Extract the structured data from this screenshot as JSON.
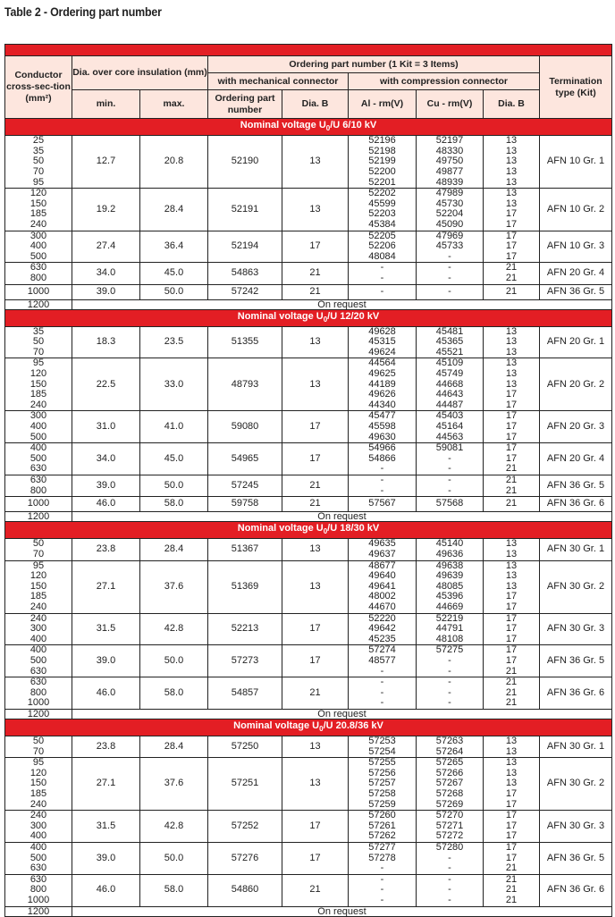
{
  "title": "Table 2 - Ordering part number",
  "colors": {
    "accent_red": "#e31e24",
    "header_bg": "#fde6de"
  },
  "header": {
    "conductor": "Conductor cross-sec-tion (mm²)",
    "dia_core": "Dia. over core insulation (mm)",
    "min": "min.",
    "max": "max.",
    "ordering": "Ordering part number (1 Kit = 3 Items)",
    "mechanical": "with mechanical connector",
    "compression": "with compression connector",
    "ordering_part": "Ordering part number",
    "dia_b": "Dia. B",
    "al": "Al - rm(V)",
    "cu": "Cu - rm(V)",
    "dia_b2": "Dia. B",
    "termination": "Termination type (Kit)"
  },
  "sections": [
    {
      "voltage_prefix": "Nominal voltage U",
      "voltage_sub": "0",
      "voltage_suffix": "/U 6/10 kV",
      "groups": [
        {
          "sizes": [
            "25",
            "35",
            "50",
            "70",
            "95"
          ],
          "min": "12.7",
          "max": "20.8",
          "mech": "52190",
          "mech_dia": "13",
          "al": [
            "52196",
            "52198",
            "52199",
            "52200",
            "52201"
          ],
          "cu": [
            "52197",
            "48330",
            "49750",
            "49877",
            "48939"
          ],
          "dia": [
            "13",
            "13",
            "13",
            "13",
            "13"
          ],
          "term": "AFN 10 Gr. 1"
        },
        {
          "sizes": [
            "120",
            "150",
            "185",
            "240"
          ],
          "min": "19.2",
          "max": "28.4",
          "mech": "52191",
          "mech_dia": "13",
          "al": [
            "52202",
            "45599",
            "52203",
            "45384"
          ],
          "cu": [
            "47989",
            "45730",
            "52204",
            "45090"
          ],
          "dia": [
            "13",
            "13",
            "17",
            "17"
          ],
          "term": "AFN 10 Gr. 2"
        },
        {
          "sizes": [
            "300",
            "400",
            "500"
          ],
          "min": "27.4",
          "max": "36.4",
          "mech": "52194",
          "mech_dia": "17",
          "al": [
            "52205",
            "52206",
            "48084"
          ],
          "cu": [
            "47969",
            "45733",
            "-"
          ],
          "dia": [
            "17",
            "17",
            "17"
          ],
          "term": "AFN 10 Gr. 3"
        },
        {
          "sizes": [
            "630",
            "800"
          ],
          "min": "34.0",
          "max": "45.0",
          "mech": "54863",
          "mech_dia": "21",
          "al": [
            "-",
            "-"
          ],
          "cu": [
            "-",
            "-"
          ],
          "dia": [
            "21",
            "21"
          ],
          "term": "AFN 20 Gr. 4"
        },
        {
          "sizes": [
            "1000"
          ],
          "min": "39.0",
          "max": "50.0",
          "mech": "57242",
          "mech_dia": "21",
          "al": [
            "-"
          ],
          "cu": [
            "-"
          ],
          "dia": [
            "21"
          ],
          "term": "AFN 36 Gr. 5"
        }
      ],
      "request_size": "1200",
      "request_text": "On request"
    },
    {
      "voltage_prefix": "Nominal voltage U",
      "voltage_sub": "0",
      "voltage_suffix": "/U 12/20 kV",
      "groups": [
        {
          "sizes": [
            "35",
            "50",
            "70"
          ],
          "min": "18.3",
          "max": "23.5",
          "mech": "51355",
          "mech_dia": "13",
          "al": [
            "49628",
            "45315",
            "49624"
          ],
          "cu": [
            "45481",
            "45365",
            "45521"
          ],
          "dia": [
            "13",
            "13",
            "13"
          ],
          "term": "AFN 20 Gr. 1"
        },
        {
          "sizes": [
            "95",
            "120",
            "150",
            "185",
            "240"
          ],
          "min": "22.5",
          "max": "33.0",
          "mech": "48793",
          "mech_dia": "13",
          "al": [
            "44564",
            "49625",
            "44189",
            "49626",
            "44340"
          ],
          "cu": [
            "45109",
            "45749",
            "44668",
            "44643",
            "44487"
          ],
          "dia": [
            "13",
            "13",
            "13",
            "17",
            "17"
          ],
          "term": "AFN 20 Gr. 2"
        },
        {
          "sizes": [
            "300",
            "400",
            "500"
          ],
          "min": "31.0",
          "max": "41.0",
          "mech": "59080",
          "mech_dia": "17",
          "al": [
            "45477",
            "45598",
            "49630"
          ],
          "cu": [
            "45403",
            "45164",
            "44563"
          ],
          "dia": [
            "17",
            "17",
            "17"
          ],
          "term": "AFN 20 Gr. 3"
        },
        {
          "sizes": [
            "400",
            "500",
            "630"
          ],
          "min": "34.0",
          "max": "45.0",
          "mech": "54965",
          "mech_dia": "17",
          "al": [
            "54966",
            "54866",
            "-"
          ],
          "cu": [
            "59081",
            "-",
            "-"
          ],
          "dia": [
            "17",
            "17",
            "21"
          ],
          "term": "AFN 20 Gr. 4"
        },
        {
          "sizes": [
            "630",
            "800"
          ],
          "min": "39.0",
          "max": "50.0",
          "mech": "57245",
          "mech_dia": "21",
          "al": [
            "-",
            "-"
          ],
          "cu": [
            "-",
            "-"
          ],
          "dia": [
            "21",
            "21"
          ],
          "term": "AFN 36 Gr. 5"
        },
        {
          "sizes": [
            "1000"
          ],
          "min": "46.0",
          "max": "58.0",
          "mech": "59758",
          "mech_dia": "21",
          "al": [
            "57567"
          ],
          "cu": [
            "57568"
          ],
          "dia": [
            "21"
          ],
          "term": "AFN 36 Gr. 6"
        }
      ],
      "request_size": "1200",
      "request_text": "On request"
    },
    {
      "voltage_prefix": "Nominal voltage U",
      "voltage_sub": "0",
      "voltage_suffix": "/U 18/30 kV",
      "groups": [
        {
          "sizes": [
            "50",
            "70"
          ],
          "min": "23.8",
          "max": "28.4",
          "mech": "51367",
          "mech_dia": "13",
          "al": [
            "49635",
            "49637"
          ],
          "cu": [
            "45140",
            "49636"
          ],
          "dia": [
            "13",
            "13"
          ],
          "term": "AFN 30 Gr. 1"
        },
        {
          "sizes": [
            "95",
            "120",
            "150",
            "185",
            "240"
          ],
          "min": "27.1",
          "max": "37.6",
          "mech": "51369",
          "mech_dia": "13",
          "al": [
            "48677",
            "49640",
            "49641",
            "48002",
            "44670"
          ],
          "cu": [
            "49638",
            "49639",
            "48085",
            "45396",
            "44669"
          ],
          "dia": [
            "13",
            "13",
            "13",
            "17",
            "17"
          ],
          "term": "AFN 30 Gr. 2"
        },
        {
          "sizes": [
            "240",
            "300",
            "400"
          ],
          "min": "31.5",
          "max": "42.8",
          "mech": "52213",
          "mech_dia": "17",
          "al": [
            "52220",
            "49642",
            "45235"
          ],
          "cu": [
            "52219",
            "44791",
            "48108"
          ],
          "dia": [
            "17",
            "17",
            "17"
          ],
          "term": "AFN 30 Gr. 3"
        },
        {
          "sizes": [
            "400",
            "500",
            "630"
          ],
          "min": "39.0",
          "max": "50.0",
          "mech": "57273",
          "mech_dia": "17",
          "al": [
            "57274",
            "48577",
            "-"
          ],
          "cu": [
            "57275",
            "-",
            "-"
          ],
          "dia": [
            "17",
            "17",
            "21"
          ],
          "term": "AFN 36 Gr. 5"
        },
        {
          "sizes": [
            "630",
            "800",
            "1000"
          ],
          "min": "46.0",
          "max": "58.0",
          "mech": "54857",
          "mech_dia": "21",
          "al": [
            "-",
            "-",
            "-"
          ],
          "cu": [
            "-",
            "-",
            "-"
          ],
          "dia": [
            "21",
            "21",
            "21"
          ],
          "term": "AFN 36 Gr. 6"
        }
      ],
      "request_size": "1200",
      "request_text": "On request"
    },
    {
      "voltage_prefix": "Nominal voltage U",
      "voltage_sub": "0",
      "voltage_suffix": "/U 20.8/36 kV",
      "groups": [
        {
          "sizes": [
            "50",
            "70"
          ],
          "min": "23.8",
          "max": "28.4",
          "mech": "57250",
          "mech_dia": "13",
          "al": [
            "57253",
            "57254"
          ],
          "cu": [
            "57263",
            "57264"
          ],
          "dia": [
            "13",
            "13"
          ],
          "term": "AFN 30 Gr. 1"
        },
        {
          "sizes": [
            "95",
            "120",
            "150",
            "185",
            "240"
          ],
          "min": "27.1",
          "max": "37.6",
          "mech": "57251",
          "mech_dia": "13",
          "al": [
            "57255",
            "57256",
            "57257",
            "57258",
            "57259"
          ],
          "cu": [
            "57265",
            "57266",
            "57267",
            "57268",
            "57269"
          ],
          "dia": [
            "13",
            "13",
            "13",
            "17",
            "17"
          ],
          "term": "AFN 30 Gr. 2"
        },
        {
          "sizes": [
            "240",
            "300",
            "400"
          ],
          "min": "31.5",
          "max": "42.8",
          "mech": "57252",
          "mech_dia": "17",
          "al": [
            "57260",
            "57261",
            "57262"
          ],
          "cu": [
            "57270",
            "57271",
            "57272"
          ],
          "dia": [
            "17",
            "17",
            "17"
          ],
          "term": "AFN 30 Gr. 3"
        },
        {
          "sizes": [
            "400",
            "500",
            "630"
          ],
          "min": "39.0",
          "max": "50.0",
          "mech": "57276",
          "mech_dia": "17",
          "al": [
            "57277",
            "57278",
            "-"
          ],
          "cu": [
            "57280",
            "-",
            "-"
          ],
          "dia": [
            "17",
            "17",
            "21"
          ],
          "term": "AFN 36 Gr. 5"
        },
        {
          "sizes": [
            "630",
            "800",
            "1000"
          ],
          "min": "46.0",
          "max": "58.0",
          "mech": "54860",
          "mech_dia": "21",
          "al": [
            "-",
            "-",
            "-"
          ],
          "cu": [
            "-",
            "-",
            "-"
          ],
          "dia": [
            "21",
            "21",
            "21"
          ],
          "term": "AFN 36 Gr. 6"
        }
      ],
      "request_size": "1200",
      "request_text": "On request"
    }
  ]
}
